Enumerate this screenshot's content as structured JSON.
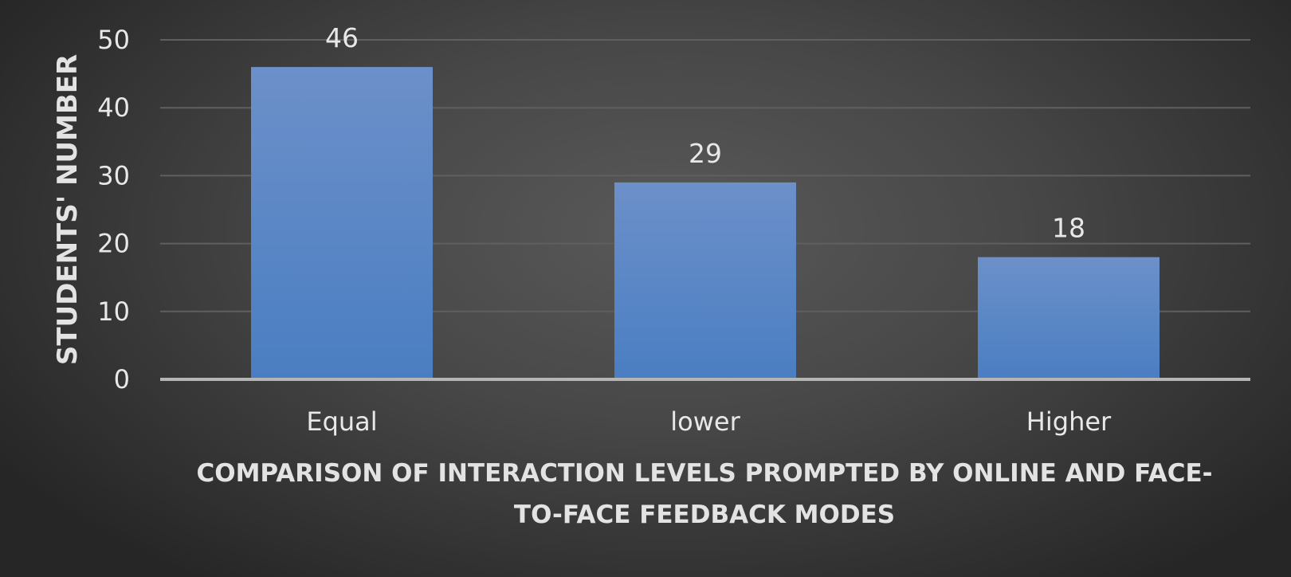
{
  "chart_data": {
    "type": "bar",
    "categories": [
      "Equal",
      "lower",
      "Higher"
    ],
    "values": [
      46,
      29,
      18
    ],
    "data_labels": [
      "46",
      "29",
      "18"
    ],
    "title": "",
    "xlabel_lines": [
      "COMPARISON OF INTERACTION LEVELS PROMPTED BY ONLINE AND FACE-",
      "TO-FACE FEEDBACK MODES"
    ],
    "ylabel": "STUDENTS' NUMBER",
    "ylim": [
      0,
      50
    ],
    "yticks": [
      0,
      10,
      20,
      30,
      40,
      50
    ],
    "ytick_labels": [
      "0",
      "10",
      "20",
      "30",
      "40",
      "50"
    ],
    "grid": true,
    "legend": "none",
    "colors": {
      "bar_top": "#6c90c9",
      "bar_bottom": "#4a7ec2",
      "gridline": "#5f5f5f",
      "axis_line": "#b5b5b5"
    }
  }
}
